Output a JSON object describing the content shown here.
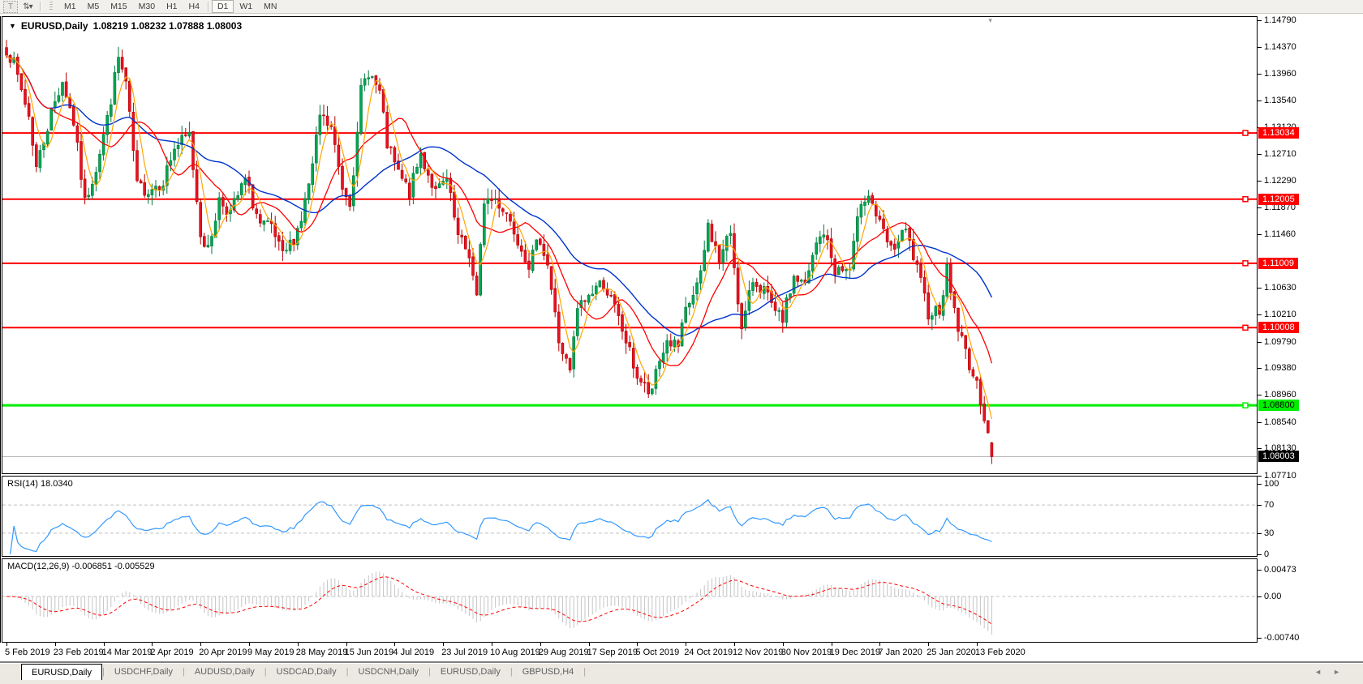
{
  "toolbar": {
    "text_tool_label": "T",
    "bars_icon_glyph": "⇅",
    "bars_icon_caret": "▾",
    "timeframes": [
      {
        "label": "M1",
        "active": false
      },
      {
        "label": "M5",
        "active": false
      },
      {
        "label": "M15",
        "active": false
      },
      {
        "label": "M30",
        "active": false
      },
      {
        "label": "H1",
        "active": false
      },
      {
        "label": "H4",
        "active": false
      },
      {
        "label": "D1",
        "active": true
      },
      {
        "label": "W1",
        "active": false
      },
      {
        "label": "MN",
        "active": false
      }
    ]
  },
  "chart_data": [
    {
      "type": "candlestick",
      "title": "EURUSD,Daily",
      "menu_caret": "▼",
      "quote_line": "1.08219 1.08232 1.07888 1.08003",
      "ohlc_current": {
        "open": "1.08219",
        "high": "1.08232",
        "low": "1.07888",
        "close": "1.08003"
      },
      "shift_marker_glyph": "▾",
      "y_ticks": [
        "1.14790",
        "1.14370",
        "1.13960",
        "1.13540",
        "1.13120",
        "1.12710",
        "1.12290",
        "1.11870",
        "1.11460",
        "1.10630",
        "1.10210",
        "1.09790",
        "1.09380",
        "1.08960",
        "1.08540",
        "1.08130",
        "1.07710"
      ],
      "x_labels": [
        "5 Feb 2019",
        "23 Feb 2019",
        "14 Mar 2019",
        "2 Apr 2019",
        "20 Apr 2019",
        "9 May 2019",
        "28 May 2019",
        "15 Jun 2019",
        "4 Jul 2019",
        "23 Jul 2019",
        "10 Aug 2019",
        "29 Aug 2019",
        "17 Sep 2019",
        "5 Oct 2019",
        "24 Oct 2019",
        "12 Nov 2019",
        "30 Nov 2019",
        "19 Dec 2019",
        "7 Jan 2020",
        "25 Jan 2020",
        "13 Feb 2020"
      ],
      "hlines": [
        {
          "price": 1.13034,
          "label": "1.13034",
          "color": "#FF0000",
          "label_bg": "#FF0000",
          "label_fg": "#FFFFFF"
        },
        {
          "price": 1.12005,
          "label": "1.12005",
          "color": "#FF0000",
          "label_bg": "#FF0000",
          "label_fg": "#FFFFFF"
        },
        {
          "price": 1.11009,
          "label": "1.11009",
          "color": "#FF0000",
          "label_bg": "#FF0000",
          "label_fg": "#FFFFFF"
        },
        {
          "price": 1.10008,
          "label": "1.10008",
          "color": "#FF0000",
          "label_bg": "#FF0000",
          "label_fg": "#FFFFFF"
        },
        {
          "price": 1.088,
          "label": "1.08800",
          "color": "#00EE00",
          "label_bg": "#00EE00",
          "label_fg": "#000000"
        }
      ],
      "current_price": {
        "value": 1.08003,
        "label": "1.08003",
        "label_bg": "#000000",
        "label_fg": "#FFFFFF",
        "line_color": "#B8B8B8"
      },
      "colors": {
        "up_fill": "#00A651",
        "up_stroke": "#007A3D",
        "down_fill": "#E81123",
        "down_stroke": "#B40000",
        "ma_fast": "#FFA500",
        "ma_mid": "#FF0000",
        "ma_slow": "#0033CC"
      },
      "num_candles": 265,
      "candles_per_xtick": 13,
      "waypoints": [
        [
          0,
          1.1435
        ],
        [
          2,
          1.141
        ],
        [
          6,
          1.133
        ],
        [
          8,
          1.125
        ],
        [
          12,
          1.1335
        ],
        [
          15,
          1.1385
        ],
        [
          18,
          1.132
        ],
        [
          21,
          1.1195
        ],
        [
          24,
          1.125
        ],
        [
          27,
          1.1325
        ],
        [
          30,
          1.142
        ],
        [
          32,
          1.138
        ],
        [
          35,
          1.122
        ],
        [
          38,
          1.1215
        ],
        [
          42,
          1.123
        ],
        [
          45,
          1.128
        ],
        [
          49,
          1.13
        ],
        [
          52,
          1.115
        ],
        [
          54,
          1.112
        ],
        [
          57,
          1.12
        ],
        [
          60,
          1.118
        ],
        [
          64,
          1.123
        ],
        [
          68,
          1.116
        ],
        [
          71,
          1.1155
        ],
        [
          74,
          1.111
        ],
        [
          77,
          1.114
        ],
        [
          79,
          1.117
        ],
        [
          82,
          1.125
        ],
        [
          84,
          1.133
        ],
        [
          87,
          1.131
        ],
        [
          90,
          1.122
        ],
        [
          92,
          1.12
        ],
        [
          94,
          1.1295
        ],
        [
          95,
          1.137
        ],
        [
          97,
          1.14
        ],
        [
          100,
          1.1365
        ],
        [
          102,
          1.1285
        ],
        [
          105,
          1.124
        ],
        [
          108,
          1.121
        ],
        [
          111,
          1.127
        ],
        [
          115,
          1.121
        ],
        [
          118,
          1.123
        ],
        [
          121,
          1.114
        ],
        [
          124,
          1.1115
        ],
        [
          126,
          1.1045
        ],
        [
          128,
          1.12
        ],
        [
          131,
          1.12
        ],
        [
          134,
          1.118
        ],
        [
          137,
          1.114
        ],
        [
          140,
          1.11
        ],
        [
          143,
          1.114
        ],
        [
          145,
          1.11
        ],
        [
          148,
          1.098
        ],
        [
          151,
          1.093
        ],
        [
          153,
          1.103
        ],
        [
          156,
          1.105
        ],
        [
          158,
          1.1065
        ],
        [
          160,
          1.107
        ],
        [
          163,
          1.103
        ],
        [
          166,
          1.098
        ],
        [
          169,
          1.0925
        ],
        [
          172,
          1.09
        ],
        [
          173,
          1.0895
        ],
        [
          174,
          1.0935
        ],
        [
          177,
          1.098
        ],
        [
          180,
          1.097
        ],
        [
          182,
          1.1025
        ],
        [
          186,
          1.108
        ],
        [
          188,
          1.116
        ],
        [
          191,
          1.1105
        ],
        [
          194,
          1.115
        ],
        [
          197,
          1.0995
        ],
        [
          200,
          1.1075
        ],
        [
          203,
          1.106
        ],
        [
          206,
          1.102
        ],
        [
          208,
          1.1015
        ],
        [
          211,
          1.108
        ],
        [
          214,
          1.1065
        ],
        [
          217,
          1.113
        ],
        [
          219,
          1.115
        ],
        [
          222,
          1.109
        ],
        [
          226,
          1.109
        ],
        [
          229,
          1.12
        ],
        [
          231,
          1.121
        ],
        [
          234,
          1.116
        ],
        [
          237,
          1.112
        ],
        [
          241,
          1.115
        ],
        [
          244,
          1.109
        ],
        [
          247,
          1.1025
        ],
        [
          250,
          1.103
        ],
        [
          252,
          1.109
        ],
        [
          255,
          1.1
        ],
        [
          258,
          1.0945
        ],
        [
          261,
          1.089
        ],
        [
          263,
          1.084
        ],
        [
          264,
          1.08003
        ]
      ]
    },
    {
      "type": "line",
      "label": "RSI(14) 18.0340",
      "indicator": "RSI",
      "period": 14,
      "current_value": 18.034,
      "y_ticks": [
        "100",
        "70",
        "30",
        "0"
      ],
      "levels": [
        70,
        30
      ],
      "line_color": "#3399FF",
      "level_color": "#C0C0C0"
    },
    {
      "type": "bar",
      "label": "MACD(12,26,9) -0.006851 -0.005529",
      "indicator": "MACD",
      "params": [
        12,
        26,
        9
      ],
      "current_values": [
        "-0.006851",
        "-0.005529"
      ],
      "y_ticks": [
        "0.00473",
        "0.00",
        "-0.00740"
      ],
      "histogram_color": "#C4C4C4",
      "signal_color": "#FF0000"
    }
  ],
  "tabbar": {
    "tabs": [
      {
        "label": "EURUSD,Daily",
        "active": true
      },
      {
        "label": "USDCHF,Daily",
        "active": false
      },
      {
        "label": "AUDUSD,Daily",
        "active": false
      },
      {
        "label": "USDCAD,Daily",
        "active": false
      },
      {
        "label": "USDCNH,Daily",
        "active": false
      },
      {
        "label": "EURUSD,Daily",
        "active": false
      },
      {
        "label": "GBPUSD,H4",
        "active": false
      }
    ],
    "scroll_left": "◄",
    "scroll_right": "►"
  }
}
